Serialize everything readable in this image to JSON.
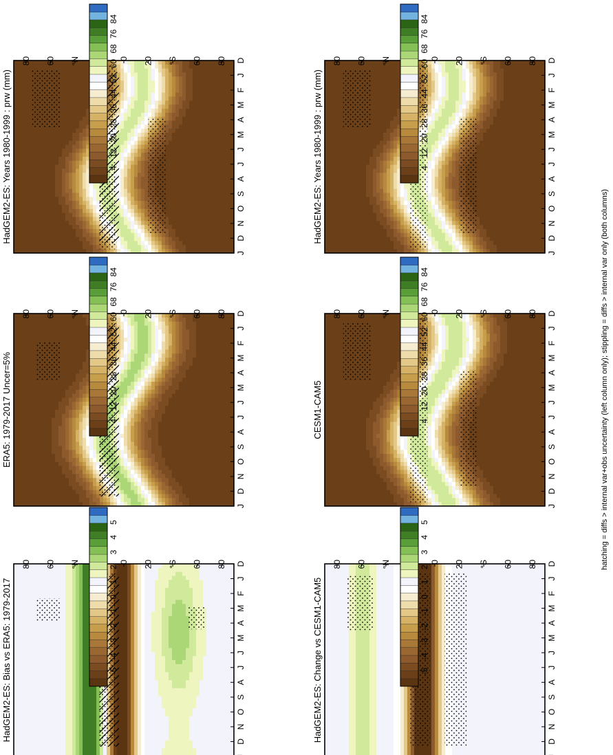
{
  "figure": {
    "footnote": "hatching = diffs > internal var+obs uncertainty (left column only); stippling = diffs > internal var only (both columns)"
  },
  "palettes": {
    "abs": [
      "#5b3511",
      "#6b4019",
      "#7b4c22",
      "#8c5a2c",
      "#9a6632",
      "#a97838",
      "#b88a3e",
      "#c79e4c",
      "#d6b266",
      "#e3c888",
      "#eeddaa",
      "#f6ecd0",
      "#ffffff",
      "#f3f4fb",
      "#eef5bf",
      "#d0e99a",
      "#acd777",
      "#84c056",
      "#5a9e3a",
      "#3f7e24",
      "#2a6414",
      "#73b3e0",
      "#2f6bc0"
    ],
    "diff": [
      "#5b3511",
      "#6b4019",
      "#7b4c22",
      "#8c5a2c",
      "#9a6632",
      "#a97838",
      "#b88a3e",
      "#c79e4c",
      "#d6b266",
      "#e3c888",
      "#eeddaa",
      "#f6ecd0",
      "#ffffff",
      "#f3f4fb",
      "#eef5bf",
      "#d0e99a",
      "#acd777",
      "#84c056",
      "#5a9e3a",
      "#3f7e24",
      "#2a6414",
      "#73b3e0",
      "#2f6bc0"
    ]
  },
  "colorbars": {
    "abs_ticks": [
      "84",
      "76",
      "68",
      "60",
      "52",
      "44",
      "36",
      "28",
      "20",
      "12",
      "4"
    ],
    "diff_ticks": [
      "5",
      "4",
      "3",
      "2",
      "1",
      "0",
      "-1",
      "-2",
      "-3",
      "-4",
      "-5"
    ]
  },
  "axes": {
    "months": [
      "D",
      "J",
      "F",
      "M",
      "A",
      "M",
      "J",
      "J",
      "A",
      "S",
      "O",
      "N",
      "D",
      "J"
    ],
    "lat_ticks": [
      "80",
      "60",
      "°N",
      "20",
      "0",
      "20",
      "°S",
      "60",
      "80"
    ]
  },
  "chart_data": [
    {
      "type": "heatmap",
      "title": "HadGEM2-ES: Years 1980-1999 : prw (mm)",
      "x": "month",
      "y": "latitude",
      "field": "prw",
      "unit": "mm",
      "kind": "model",
      "colorbar": "abs"
    },
    {
      "type": "heatmap",
      "title": "HadGEM2-ES: Years 1980-1999 : prw (mm)",
      "x": "month",
      "y": "latitude",
      "field": "prw",
      "unit": "mm",
      "kind": "model",
      "colorbar": "abs"
    },
    {
      "type": "heatmap",
      "title": "ERA5: 1979-2017 Uncer=5%",
      "x": "month",
      "y": "latitude",
      "field": "prw",
      "unit": "mm",
      "kind": "obs",
      "colorbar": "abs"
    },
    {
      "type": "heatmap",
      "title": "CESM1-CAM5",
      "x": "month",
      "y": "latitude",
      "field": "prw",
      "unit": "mm",
      "kind": "ref",
      "colorbar": "abs"
    },
    {
      "type": "heatmap",
      "title": "HadGEM2-ES: Bias vs ERA5: 1979-2017",
      "x": "month",
      "y": "latitude",
      "field": "prw difference",
      "unit": "mm",
      "kind": "bias",
      "colorbar": "diff"
    },
    {
      "type": "heatmap",
      "title": "HadGEM2-ES: Change vs CESM1-CAM5",
      "x": "month",
      "y": "latitude",
      "field": "prw difference",
      "unit": "mm",
      "kind": "change",
      "colorbar": "diff"
    }
  ]
}
